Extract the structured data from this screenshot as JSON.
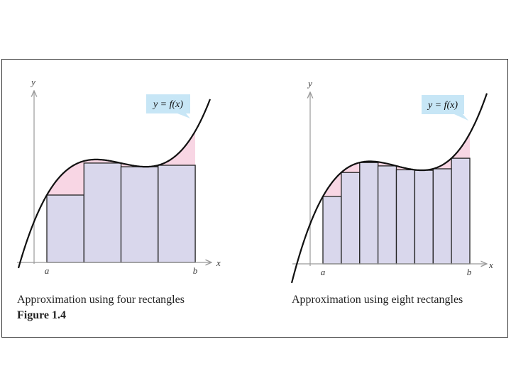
{
  "figure_label": "Figure 1.4",
  "left_panel": {
    "caption": "Approximation using four rectangles",
    "function_label": "y = f(x)",
    "axis_y": "y",
    "axis_x": "x",
    "tick_a": "a",
    "tick_b": "b"
  },
  "right_panel": {
    "caption": "Approximation using eight rectangles",
    "function_label": "y = f(x)",
    "axis_y": "y",
    "axis_x": "x",
    "tick_a": "a",
    "tick_b": "b"
  },
  "colors": {
    "rect_fill": "#d9d7ec",
    "gap_fill": "#f8d6e4",
    "label_box": "#c7e6f6",
    "curve": "#111111",
    "axis": "#999999"
  }
}
